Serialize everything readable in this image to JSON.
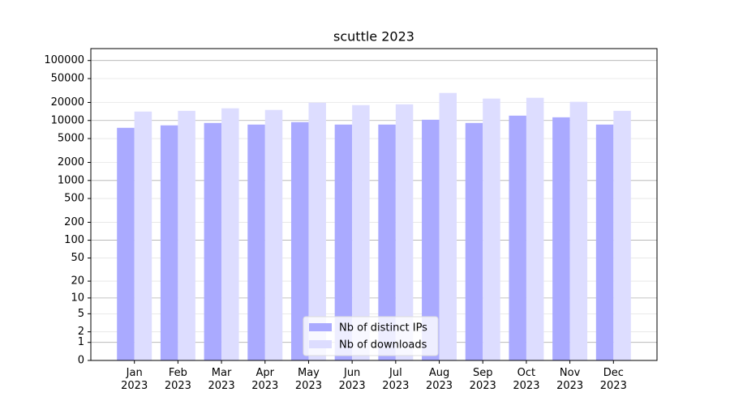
{
  "chart_data": {
    "type": "bar",
    "title": "scuttle 2023",
    "categories": [
      "Jan\n2023",
      "Feb\n2023",
      "Mar\n2023",
      "Apr\n2023",
      "May\n2023",
      "Jun\n2023",
      "Jul\n2023",
      "Aug\n2023",
      "Sep\n2023",
      "Oct\n2023",
      "Nov\n2023",
      "Dec\n2023"
    ],
    "series": [
      {
        "name": "Nb of distinct IPs",
        "color": "#aaaaff",
        "values": [
          7550,
          8300,
          9100,
          8550,
          9400,
          8550,
          8550,
          10300,
          9100,
          12050,
          11300,
          8550
        ]
      },
      {
        "name": "Nb of downloads",
        "color": "#ddddff",
        "values": [
          14100,
          14500,
          15950,
          15000,
          19800,
          18050,
          18600,
          28800,
          23200,
          23900,
          20500,
          14500
        ]
      }
    ],
    "yscale": "symlog",
    "ylim": [
      0,
      158000
    ],
    "yticks": [
      0,
      1,
      2,
      5,
      10,
      20,
      50,
      100,
      200,
      500,
      1000,
      2000,
      5000,
      10000,
      20000,
      50000,
      100000
    ],
    "grid": true,
    "legend": "lower center"
  }
}
